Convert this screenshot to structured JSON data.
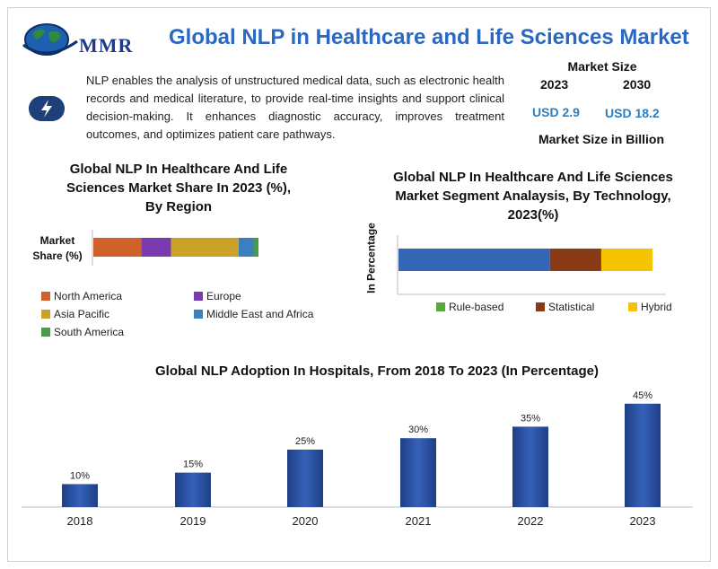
{
  "header": {
    "logo_text": "MMR",
    "title": "Global NLP in Healthcare and Life Sciences Market"
  },
  "intro": {
    "icon": "lightning-bolt-icon",
    "description": "NLP enables the analysis of unstructured medical data, such as electronic health records and medical literature, to provide real-time insights and support clinical decision-making. It enhances diagnostic accuracy, improves treatment outcomes, and optimizes patient care pathways."
  },
  "market_size": {
    "title": "Market Size",
    "year_1": "2023",
    "year_2": "2030",
    "value_1": "USD 2.9",
    "value_2": "USD 18.2",
    "unit": "Market Size in Billion"
  },
  "chart_data": [
    {
      "type": "bar",
      "orientation": "horizontal-stacked",
      "title": "Global NLP In Healthcare And Life Sciences Market Share In 2023 (%), By Region",
      "ylabel": "Market Share (%)",
      "categories": [
        "North America",
        "Europe",
        "Asia Pacific",
        "Middle East and Africa",
        "South America"
      ],
      "values": [
        29,
        18,
        41,
        9,
        3
      ],
      "colors": [
        "#d0612a",
        "#7b3bb0",
        "#c9a227",
        "#3a80c0",
        "#4a9a4a"
      ],
      "legend": "bottom"
    },
    {
      "type": "bar",
      "orientation": "horizontal-stacked",
      "title": "Global NLP In Healthcare And Life Sciences Market Segment Analaysis, By Technology, 2023(%)",
      "ylabel": "In Percentage",
      "categories": [
        "Rule-based",
        "Statistical",
        "Hybrid"
      ],
      "series_order": [
        "Hybrid",
        "Statistical",
        "Rule-based"
      ],
      "values": [
        59,
        20,
        20
      ],
      "bar_colors": [
        "#3565b5",
        "#8a3a15",
        "#f5c400"
      ],
      "legend_colors": [
        "#5aa83c",
        "#8a3a15",
        "#f5c400"
      ],
      "legend": "bottom"
    },
    {
      "type": "bar",
      "title": "Global NLP Adoption In Hospitals, From 2018 To 2023 (In Percentage)",
      "categories": [
        "2018",
        "2019",
        "2020",
        "2021",
        "2022",
        "2023"
      ],
      "values": [
        10,
        15,
        25,
        30,
        35,
        45
      ],
      "labels": [
        "10%",
        "15%",
        "25%",
        "30%",
        "35%",
        "45%"
      ],
      "ylim": [
        0,
        50
      ],
      "color": "#2a4f9c"
    }
  ]
}
